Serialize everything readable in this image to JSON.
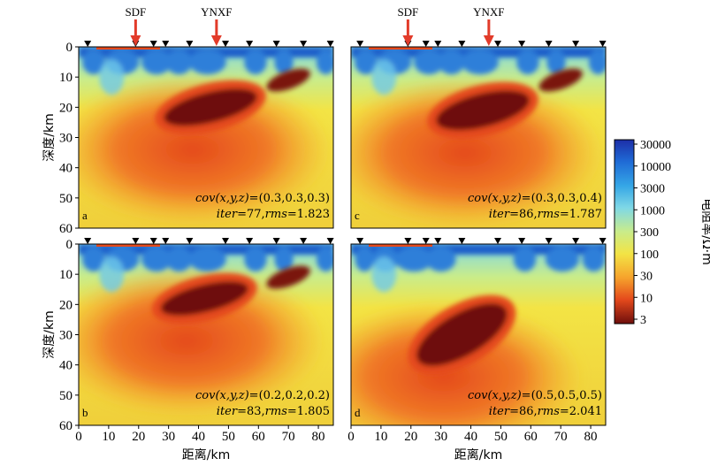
{
  "chart_data": {
    "type": "heatmap",
    "xlabel": "距离/km",
    "ylabel": "深度/km",
    "x_ticks": [
      0,
      10,
      20,
      30,
      40,
      50,
      60,
      70,
      80
    ],
    "y_ticks": [
      0,
      10,
      20,
      30,
      40,
      50,
      60
    ],
    "xlim": [
      0,
      85
    ],
    "ylim": [
      60,
      0
    ],
    "faults": [
      {
        "label": "SDF",
        "x_km": 19
      },
      {
        "label": "YNXF",
        "x_km": 46
      }
    ],
    "stations_x_km": [
      3,
      19,
      25,
      29,
      37,
      49,
      57,
      66,
      75,
      84
    ],
    "colorbar": {
      "label": "电阻率/Ω·m",
      "scale": "log",
      "ticks": [
        "30000",
        "10000",
        "3000",
        "1000",
        "300",
        "100",
        "30",
        "10",
        "3"
      ],
      "colors": [
        "#1d2fa8",
        "#1f6bd6",
        "#35a6e6",
        "#7fd8e6",
        "#c9ec8a",
        "#f3e445",
        "#f6a32c",
        "#e4491c",
        "#6e0e0c"
      ]
    },
    "panels": [
      {
        "id": "a",
        "cov": "=(0.3,0.3,0.3)",
        "iter": "=77,",
        "rms": "=1.823",
        "conductor": {
          "center_km": [
            44,
            20
          ],
          "extent_km": [
            32,
            10
          ],
          "min_resistivity": 3
        }
      },
      {
        "id": "c",
        "cov": "=(0.3,0.3,0.4)",
        "iter": "=86,",
        "rms": "=1.787",
        "conductor": {
          "center_km": [
            44,
            21
          ],
          "extent_km": [
            32,
            11
          ],
          "min_resistivity": 3
        }
      },
      {
        "id": "b",
        "cov": "=(0.2,0.2,0.2)",
        "iter": "=83,",
        "rms": "=1.805",
        "conductor": {
          "center_km": [
            42,
            18
          ],
          "extent_km": [
            30,
            9
          ],
          "min_resistivity": 3
        }
      },
      {
        "id": "d",
        "cov": "=(0.5,0.5,0.5)",
        "iter": "=86,",
        "rms": "=2.041",
        "conductor": {
          "center_km": [
            37,
            30
          ],
          "extent_km": [
            34,
            14
          ],
          "min_resistivity": 3
        }
      }
    ]
  },
  "text": {
    "cov_prefix": "cov",
    "cov_args": "(x,y,z)",
    "iter_label": "iter",
    "rms_label": "rms"
  }
}
